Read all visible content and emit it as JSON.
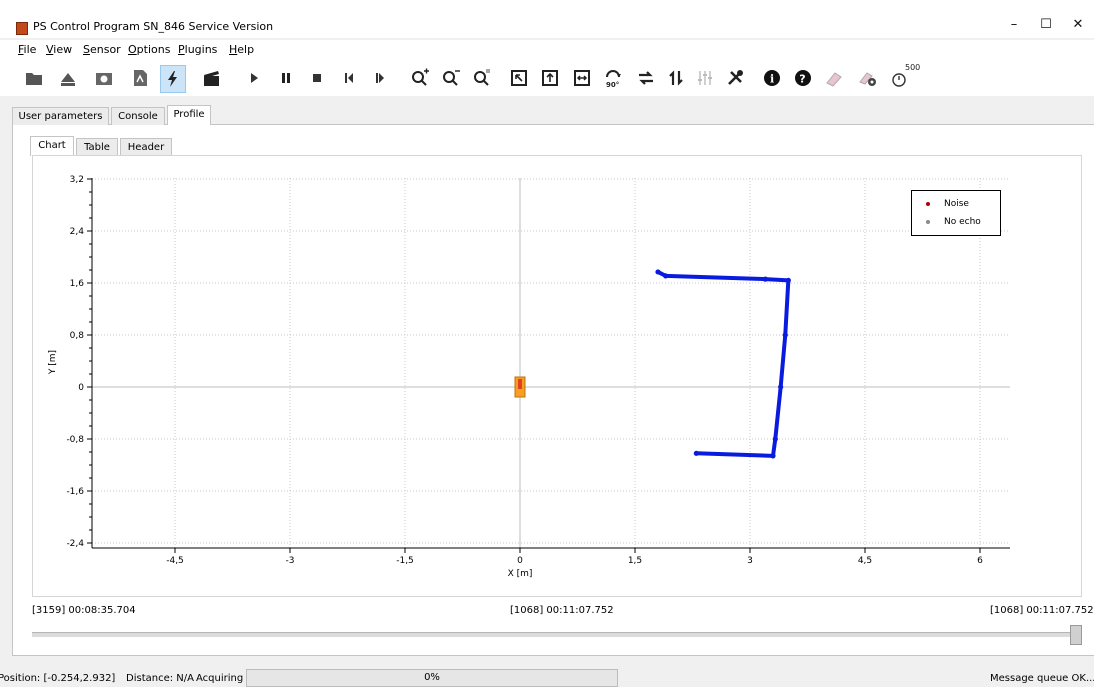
{
  "window": {
    "title": "PS Control Program SN_846 Service Version",
    "minimize": "–",
    "maximize": "☐",
    "close": "✕"
  },
  "menu": [
    "File",
    "View",
    "Sensor",
    "Options",
    "Plugins",
    "Help"
  ],
  "toolbar": {
    "timer_label": "500"
  },
  "main_tabs": [
    "User parameters",
    "Console",
    "Profile"
  ],
  "sub_tabs": [
    "Chart",
    "Table",
    "Header"
  ],
  "legend": {
    "noise": "Noise",
    "no_echo": "No echo",
    "noise_color": "#b00000",
    "no_echo_color": "#8a8a8a"
  },
  "chart_data": {
    "type": "scatter",
    "xlabel": "X [m]",
    "ylabel": "Y [m]",
    "xlim": [
      -5.5,
      6.4
    ],
    "ylim": [
      -2.5,
      3.3
    ],
    "xticks": [
      "-4,5",
      "-3",
      "-1,5",
      "0",
      "1,5",
      "3",
      "4,5",
      "6"
    ],
    "yticks": [
      "3,2",
      "2,4",
      "1,6",
      "0,8",
      "0",
      "-0,8",
      "-1,6",
      "-2,4"
    ],
    "grid": true,
    "legend_position": "top-right",
    "series": [
      {
        "color": "#0a1be0",
        "polyline": [
          [
            1.8,
            1.77
          ],
          [
            1.9,
            1.71
          ],
          [
            3.2,
            1.66
          ],
          [
            3.5,
            1.64
          ],
          [
            3.46,
            0.8
          ],
          [
            3.4,
            0.0
          ],
          [
            3.33,
            -0.8
          ],
          [
            3.3,
            -1.06
          ],
          [
            2.3,
            -1.02
          ]
        ]
      }
    ],
    "sensor_marker": {
      "x": 0,
      "y": 0,
      "color": "#f5a021"
    }
  },
  "timeline": {
    "left": "[3159] 00:08:35.704",
    "center": "[1068] 00:11:07.752",
    "right": "[1068] 00:11:07.752",
    "position": 1.0
  },
  "status": {
    "position": "Position: [-0.254,2.932]",
    "distance": "Distance: N/A",
    "state": "Acquiring",
    "progress": "0%",
    "message": "Message queue OK..."
  }
}
